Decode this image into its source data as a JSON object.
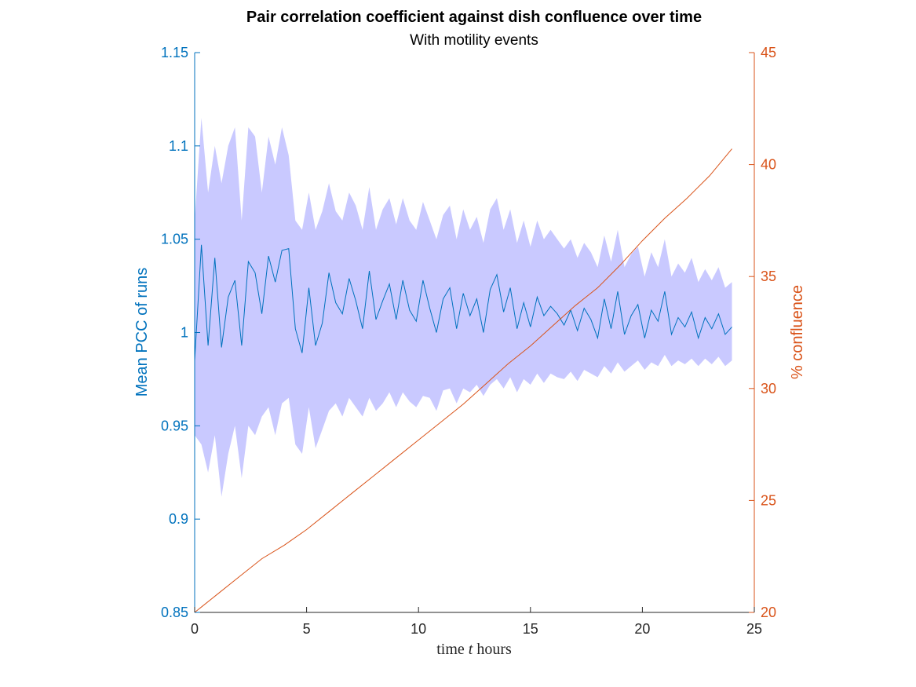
{
  "chart_data": {
    "type": "line",
    "title": "Pair correlation coefficient against dish confluence over time",
    "subtitle": "With motility events",
    "xlabel": {
      "pre": "time ",
      "var": "t",
      "post": " hours"
    },
    "ylabel_left": "Mean PCC of runs",
    "ylabel_right": "% confluence",
    "xlim": [
      0,
      25
    ],
    "ylim_left": [
      0.85,
      1.15
    ],
    "ylim_right": [
      20,
      45
    ],
    "x_ticks": [
      "0",
      "5",
      "10",
      "15",
      "20",
      "25"
    ],
    "y_left_ticks": [
      "0.85",
      "0.9",
      "0.95",
      "1",
      "1.05",
      "1.1",
      "1.15"
    ],
    "y_right_ticks": [
      "20",
      "25",
      "30",
      "35",
      "40",
      "45"
    ],
    "colors": {
      "mean": "#0072BD",
      "band": "#C9C9FF",
      "confluence": "#D95319",
      "axis_x": "#262626"
    },
    "series": [
      {
        "axis": "left",
        "style": "line",
        "x": [
          0,
          0.3,
          0.6,
          0.9,
          1.2,
          1.5,
          1.8,
          2.1,
          2.4,
          2.7,
          3.0,
          3.3,
          3.6,
          3.9,
          4.2,
          4.5,
          4.8,
          5.1,
          5.4,
          5.7,
          6.0,
          6.3,
          6.6,
          6.9,
          7.2,
          7.5,
          7.8,
          8.1,
          8.4,
          8.7,
          9.0,
          9.3,
          9.6,
          9.9,
          10.2,
          10.5,
          10.8,
          11.1,
          11.4,
          11.7,
          12.0,
          12.3,
          12.6,
          12.9,
          13.2,
          13.5,
          13.8,
          14.1,
          14.4,
          14.7,
          15.0,
          15.3,
          15.6,
          15.9,
          16.2,
          16.5,
          16.8,
          17.1,
          17.4,
          17.7,
          18.0,
          18.3,
          18.6,
          18.9,
          19.2,
          19.5,
          19.8,
          20.1,
          20.4,
          20.7,
          21.0,
          21.3,
          21.6,
          21.9,
          22.2,
          22.5,
          22.8,
          23.1,
          23.4,
          23.7,
          24.0
        ],
        "values": [
          0.985,
          1.047,
          0.993,
          1.04,
          0.992,
          1.019,
          1.028,
          0.993,
          1.038,
          1.032,
          1.01,
          1.041,
          1.027,
          1.044,
          1.045,
          1.002,
          0.989,
          1.024,
          0.993,
          1.005,
          1.032,
          1.016,
          1.01,
          1.029,
          1.017,
          1.002,
          1.033,
          1.007,
          1.017,
          1.026,
          1.007,
          1.028,
          1.012,
          1.006,
          1.028,
          1.013,
          1.0,
          1.018,
          1.024,
          1.002,
          1.021,
          1.009,
          1.018,
          1.0,
          1.023,
          1.031,
          1.011,
          1.024,
          1.002,
          1.016,
          1.003,
          1.019,
          1.009,
          1.014,
          1.01,
          1.004,
          1.012,
          1.001,
          1.013,
          1.007,
          0.997,
          1.018,
          1.002,
          1.022,
          0.999,
          1.009,
          1.015,
          0.997,
          1.012,
          1.006,
          1.022,
          0.999,
          1.008,
          1.003,
          1.011,
          0.997,
          1.008,
          1.002,
          1.01,
          0.999,
          1.003
        ]
      },
      {
        "axis": "left",
        "style": "band",
        "x": [
          0,
          0.3,
          0.6,
          0.9,
          1.2,
          1.5,
          1.8,
          2.1,
          2.4,
          2.7,
          3.0,
          3.3,
          3.6,
          3.9,
          4.2,
          4.5,
          4.8,
          5.1,
          5.4,
          5.7,
          6.0,
          6.3,
          6.6,
          6.9,
          7.2,
          7.5,
          7.8,
          8.1,
          8.4,
          8.7,
          9.0,
          9.3,
          9.6,
          9.9,
          10.2,
          10.5,
          10.8,
          11.1,
          11.4,
          11.7,
          12.0,
          12.3,
          12.6,
          12.9,
          13.2,
          13.5,
          13.8,
          14.1,
          14.4,
          14.7,
          15.0,
          15.3,
          15.6,
          15.9,
          16.2,
          16.5,
          16.8,
          17.1,
          17.4,
          17.7,
          18.0,
          18.3,
          18.6,
          18.9,
          19.2,
          19.5,
          19.8,
          20.1,
          20.4,
          20.7,
          21.0,
          21.3,
          21.6,
          21.9,
          22.2,
          22.5,
          22.8,
          23.1,
          23.4,
          23.7,
          24.0
        ],
        "lower": [
          0.945,
          0.94,
          0.925,
          0.945,
          0.912,
          0.935,
          0.95,
          0.922,
          0.95,
          0.945,
          0.955,
          0.96,
          0.945,
          0.962,
          0.965,
          0.94,
          0.935,
          0.96,
          0.938,
          0.948,
          0.958,
          0.962,
          0.955,
          0.965,
          0.96,
          0.955,
          0.965,
          0.958,
          0.962,
          0.968,
          0.96,
          0.968,
          0.963,
          0.96,
          0.966,
          0.965,
          0.958,
          0.969,
          0.97,
          0.962,
          0.97,
          0.968,
          0.972,
          0.966,
          0.972,
          0.975,
          0.97,
          0.976,
          0.968,
          0.975,
          0.972,
          0.978,
          0.973,
          0.978,
          0.976,
          0.975,
          0.979,
          0.974,
          0.98,
          0.978,
          0.976,
          0.982,
          0.978,
          0.984,
          0.979,
          0.982,
          0.985,
          0.98,
          0.984,
          0.982,
          0.988,
          0.982,
          0.985,
          0.983,
          0.986,
          0.982,
          0.986,
          0.983,
          0.987,
          0.982,
          0.985
        ],
        "upper": [
          1.06,
          1.115,
          1.075,
          1.1,
          1.08,
          1.1,
          1.11,
          1.06,
          1.11,
          1.105,
          1.075,
          1.105,
          1.09,
          1.11,
          1.095,
          1.06,
          1.055,
          1.075,
          1.055,
          1.065,
          1.08,
          1.065,
          1.06,
          1.075,
          1.068,
          1.055,
          1.078,
          1.055,
          1.066,
          1.072,
          1.058,
          1.072,
          1.06,
          1.055,
          1.07,
          1.06,
          1.05,
          1.063,
          1.068,
          1.05,
          1.066,
          1.055,
          1.062,
          1.048,
          1.066,
          1.072,
          1.055,
          1.066,
          1.048,
          1.06,
          1.046,
          1.06,
          1.05,
          1.055,
          1.05,
          1.045,
          1.05,
          1.04,
          1.048,
          1.043,
          1.035,
          1.052,
          1.038,
          1.055,
          1.035,
          1.042,
          1.046,
          1.03,
          1.043,
          1.035,
          1.05,
          1.03,
          1.037,
          1.032,
          1.04,
          1.027,
          1.034,
          1.028,
          1.035,
          1.024,
          1.027
        ]
      },
      {
        "axis": "right",
        "style": "line",
        "x": [
          0,
          1,
          2,
          3,
          4,
          5,
          6,
          7,
          8,
          9,
          10,
          11,
          12,
          13,
          14,
          15,
          16,
          17,
          18,
          19,
          20,
          21,
          22,
          23,
          24
        ],
        "values": [
          20.0,
          20.8,
          21.6,
          22.4,
          23.0,
          23.7,
          24.5,
          25.3,
          26.1,
          26.9,
          27.7,
          28.5,
          29.3,
          30.2,
          31.1,
          31.9,
          32.8,
          33.7,
          34.5,
          35.5,
          36.6,
          37.6,
          38.5,
          39.5,
          40.7
        ]
      }
    ]
  }
}
